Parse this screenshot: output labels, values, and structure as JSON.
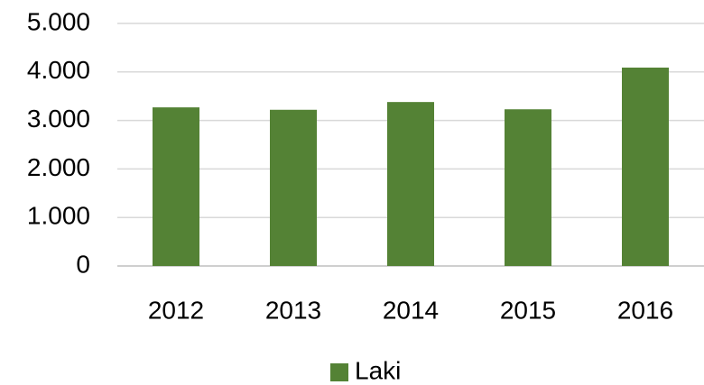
{
  "chart_data": {
    "type": "bar",
    "categories": [
      "2012",
      "2013",
      "2014",
      "2015",
      "2016"
    ],
    "series": [
      {
        "name": "Laki",
        "color": "#548235",
        "values": [
          3270,
          3220,
          3380,
          3230,
          4090
        ]
      }
    ],
    "ylim": [
      0,
      5000
    ],
    "yticks": [
      0,
      {
        "value": 1000,
        "label": "1.000"
      },
      {
        "value": 2000,
        "label": "2.000"
      },
      {
        "value": 3000,
        "label": "3.000"
      },
      {
        "value": 4000,
        "label": "4.000"
      },
      {
        "value": 5000,
        "label": "5.000"
      }
    ],
    "grid": true,
    "legend": "bottom"
  }
}
